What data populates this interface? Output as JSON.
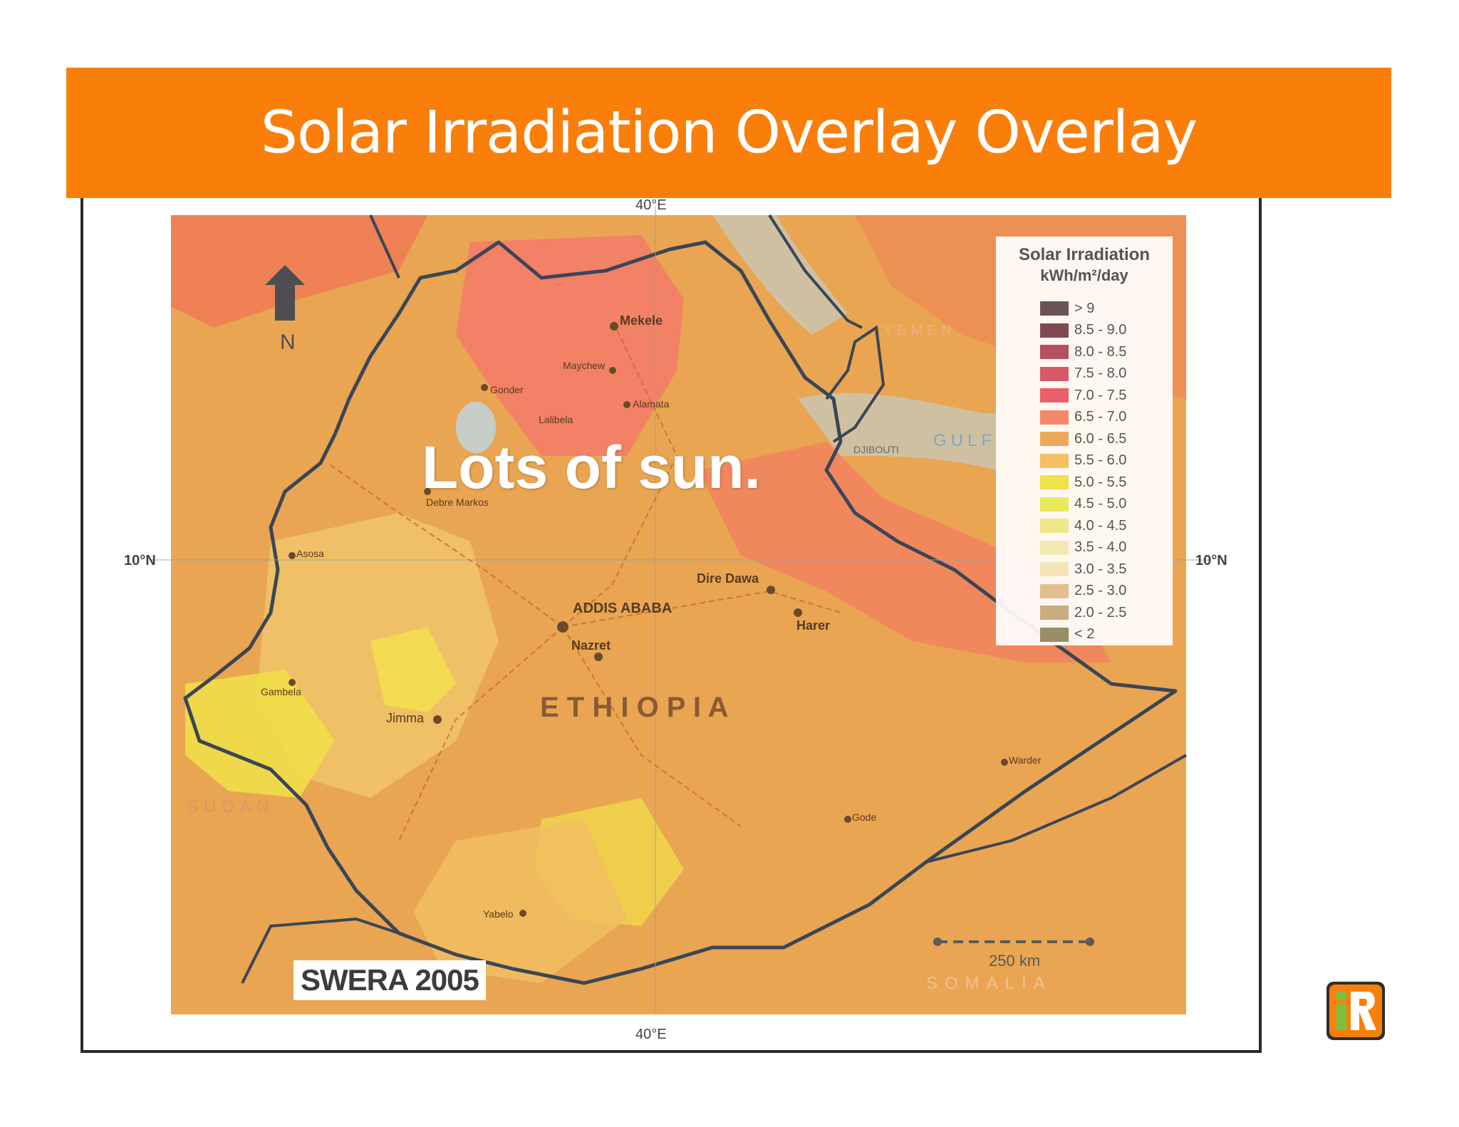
{
  "slide": {
    "title": "Solar Irradiation Overlay Overlay",
    "caption": "Lots of sun.",
    "source": "SWERA 2005"
  },
  "map": {
    "country_label": "E T H I O P I A",
    "north_label": "N",
    "lat_label_left": "10°N",
    "lat_label_right": "10°N",
    "lon_label_top": "40°E",
    "lon_label_bottom": "40°E",
    "scale_label": "250 km",
    "gulf_label": "GULF OF",
    "djibouti_label": "DJIBOUTI",
    "sudan_label": "SUDAN",
    "somalia_label": "SOMALIA",
    "yemen_label": "YEMEN",
    "cities": [
      "Mekele",
      "Gonder",
      "Maychew",
      "Alamata",
      "Lalibela",
      "Dire Dawa",
      "Harer",
      "ADDIS ABABA",
      "Nazret",
      "Jimma",
      "Gambela",
      "Asosa",
      "Debre Markos",
      "Gode",
      "Warder",
      "Yabelo"
    ],
    "colors": {
      "base": "#e9a552",
      "hot": "#f07a55",
      "warm": "#e89a5a",
      "mild": "#f0c468",
      "cool": "#f0de48",
      "border": "#3a4656",
      "water": "#bcd7e4"
    }
  },
  "legend": {
    "title": "Solar Irradiation",
    "units": "kWh/m²/day",
    "items": [
      {
        "label": "> 9",
        "color": "#6b5456"
      },
      {
        "label": "8.5 - 9.0",
        "color": "#7e4a50"
      },
      {
        "label": "8.0 - 8.5",
        "color": "#b55060"
      },
      {
        "label": "7.5 - 8.0",
        "color": "#d55a68"
      },
      {
        "label": "7.0 - 7.5",
        "color": "#ec5e6a"
      },
      {
        "label": "6.5 - 7.0",
        "color": "#f58868"
      },
      {
        "label": "6.0 - 6.5",
        "color": "#eda85c"
      },
      {
        "label": "5.5 - 6.0",
        "color": "#f3c063"
      },
      {
        "label": "5.0 - 5.5",
        "color": "#f0e24a"
      },
      {
        "label": "4.5 - 5.0",
        "color": "#e8ea5a"
      },
      {
        "label": "4.0 - 4.5",
        "color": "#ece88a"
      },
      {
        "label": "3.5 - 4.0",
        "color": "#f2eab2"
      },
      {
        "label": "3.0 - 3.5",
        "color": "#f4e4b8"
      },
      {
        "label": "2.5 - 3.0",
        "color": "#e3bf8e"
      },
      {
        "label": "2.0 - 2.5",
        "color": "#c9ad7e"
      },
      {
        "label": "< 2",
        "color": "#9a8c66"
      }
    ]
  }
}
